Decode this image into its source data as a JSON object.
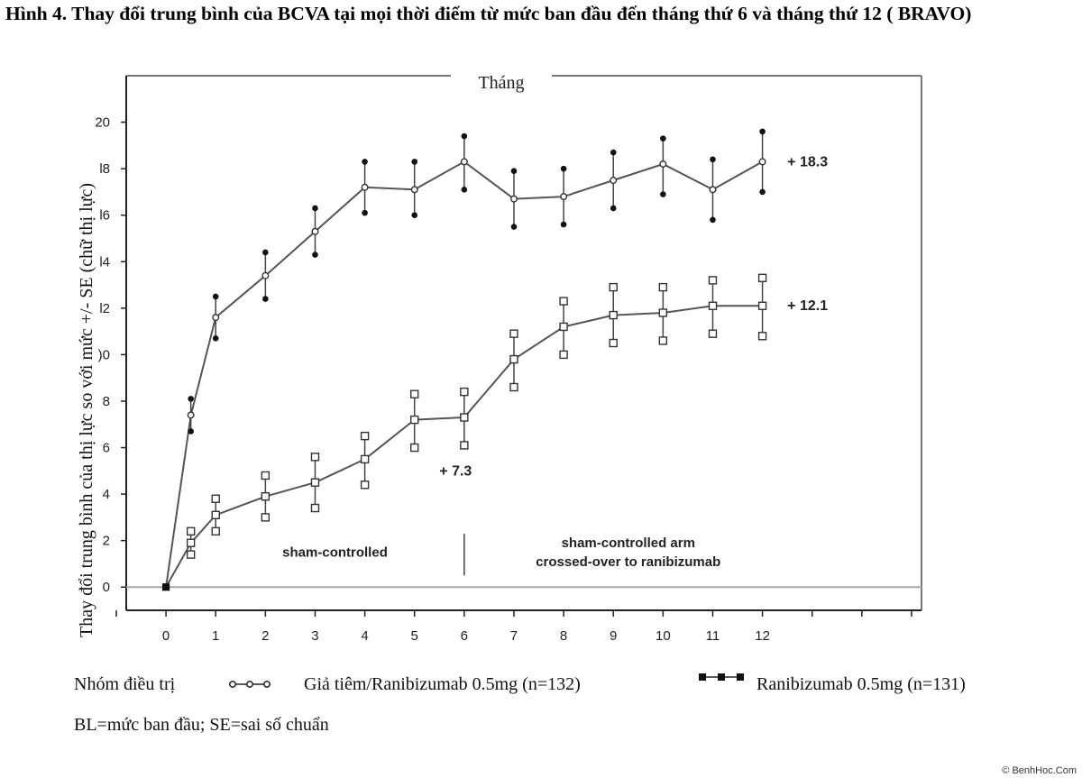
{
  "figure_title": "Hình 4. Thay đổi trung bình của BCVA tại mọi thời điểm từ mức ban đầu đến tháng thứ 6 và tháng thứ 12 ( BRAVO)",
  "watermark": "© BenhHoc.Com",
  "legend": {
    "group_label": "Nhóm điều trị",
    "series_a_label": "Giả tiêm/Ranibizumab 0.5mg (n=132)",
    "series_b_label": "Ranibizumab 0.5mg (n=131)"
  },
  "note": "BL=mức ban đầu; SE=sai số chuẩn",
  "chart_data": {
    "type": "line",
    "xlabel": "Tháng",
    "ylabel": "Thay đổi trung bình của thị lực so với mức +/- SE (chữ thị lực)",
    "x_ticks": [
      "0",
      "1",
      "2",
      "3",
      "4",
      "5",
      "6",
      "7",
      "8",
      "9",
      "10",
      "11",
      "12"
    ],
    "y_ticks": [
      "0",
      "2",
      "4",
      "6",
      "8",
      ")0",
      "l2",
      "l4",
      "l6",
      "l8",
      "20"
    ],
    "xlim": [
      -0.8,
      15.2
    ],
    "ylim": [
      -1,
      22
    ],
    "grid": false,
    "series": [
      {
        "name": "Ranibizumab 0.5mg (n=131)",
        "marker": "circle",
        "x": [
          0,
          0.5,
          1,
          2,
          3,
          4,
          5,
          6,
          7,
          8,
          9,
          10,
          11,
          12
        ],
        "y": [
          0,
          7.4,
          11.6,
          13.4,
          15.3,
          17.2,
          17.1,
          18.3,
          16.7,
          16.8,
          17.5,
          18.2,
          17.1,
          18.3
        ],
        "upper": [
          0,
          8.1,
          12.5,
          14.4,
          16.3,
          18.3,
          18.3,
          19.4,
          17.9,
          18.0,
          18.7,
          19.3,
          18.4,
          19.6
        ],
        "lower": [
          0,
          6.7,
          10.7,
          12.4,
          14.3,
          16.1,
          16.0,
          17.1,
          15.5,
          15.6,
          16.3,
          16.9,
          15.8,
          17.0
        ]
      },
      {
        "name": "Giả tiêm/Ranibizumab 0.5mg (n=132)",
        "marker": "square",
        "x": [
          0,
          0.5,
          1,
          2,
          3,
          4,
          5,
          6,
          7,
          8,
          9,
          10,
          11,
          12
        ],
        "y": [
          0,
          1.9,
          3.1,
          3.9,
          4.5,
          5.5,
          7.2,
          7.3,
          9.8,
          11.2,
          11.7,
          11.8,
          12.1,
          12.1
        ],
        "upper": [
          0,
          2.4,
          3.8,
          4.8,
          5.6,
          6.5,
          8.3,
          8.4,
          10.9,
          12.3,
          12.9,
          12.9,
          13.2,
          13.3
        ],
        "lower": [
          0,
          1.4,
          2.4,
          3.0,
          3.4,
          4.4,
          6.0,
          6.1,
          8.6,
          10.0,
          10.5,
          10.6,
          10.9,
          10.8
        ]
      }
    ],
    "annotations": [
      {
        "text": "+ 18.3",
        "x": 12.5,
        "y": 18.3
      },
      {
        "text": "+ 12.1",
        "x": 12.5,
        "y": 12.1
      },
      {
        "text": "+ 7.3",
        "x": 5.5,
        "y": 5.0
      },
      {
        "text": "sham-controlled",
        "x": 3.4,
        "y": 1.5
      },
      {
        "text": "sham-controlled arm",
        "x": 9.3,
        "y": 1.9
      },
      {
        "text": "crossed-over to ranibizumab",
        "x": 9.3,
        "y": 1.1
      }
    ],
    "reference_lines": [
      {
        "axis": "y",
        "value": 0
      },
      {
        "axis": "x",
        "value": 6,
        "from": 0.5,
        "to": 2.3
      }
    ]
  }
}
